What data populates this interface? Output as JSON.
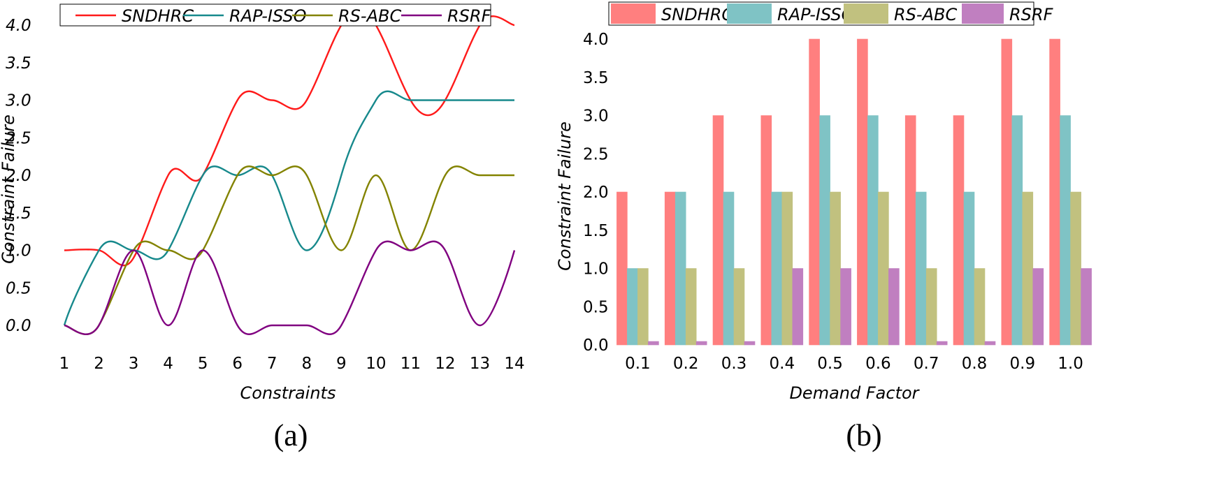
{
  "chart_data": [
    {
      "type": "line",
      "panel_label": "(a)",
      "xlabel": "Constraints",
      "ylabel": "Constraint Failure",
      "ylim": [
        0,
        4.0
      ],
      "xlim": [
        1,
        14
      ],
      "x": [
        1,
        2,
        3,
        4,
        5,
        6,
        7,
        8,
        9,
        10,
        11,
        12,
        13,
        14
      ],
      "x_tick_labels": [
        "1",
        "2",
        "3",
        "4",
        "5",
        "6",
        "7",
        "8",
        "9",
        "10",
        "11",
        "12",
        "13",
        "14"
      ],
      "y_ticks": [
        0,
        0.5,
        1,
        1.5,
        2,
        2.5,
        3,
        3.5,
        4
      ],
      "y_tick_labels": [
        "0.0",
        "0.5",
        "1.0",
        "1.5",
        "2.0",
        "2.5",
        "3.0",
        "3.5",
        "4.0"
      ],
      "legend_position": "top",
      "series": [
        {
          "name": "SNDHRC",
          "color": "#ff1a1a",
          "values": [
            1,
            1,
            0.9,
            2,
            2,
            3,
            3,
            3,
            4,
            4,
            3,
            3,
            4,
            4
          ]
        },
        {
          "name": "RAP-ISSO",
          "color": "#17898c",
          "values": [
            0,
            1,
            1,
            1,
            2,
            2,
            2,
            1,
            2,
            3,
            3,
            3,
            3,
            3
          ]
        },
        {
          "name": "RS-ABC",
          "color": "#838300",
          "values": [
            0,
            0,
            1,
            1,
            1,
            2,
            2,
            2,
            1,
            2,
            1,
            2,
            2,
            2
          ]
        },
        {
          "name": "RSRF",
          "color": "#800080",
          "values": [
            0,
            0,
            1,
            0,
            1,
            0,
            0,
            0,
            0,
            1,
            1,
            1,
            0,
            1
          ]
        }
      ]
    },
    {
      "type": "bar",
      "panel_label": "(b)",
      "xlabel": "Demand Factor",
      "ylabel": "Constraint Failure",
      "ylim": [
        0,
        4.0
      ],
      "categories": [
        "0.1",
        "0.2",
        "0.3",
        "0.4",
        "0.5",
        "0.6",
        "0.7",
        "0.8",
        "0.9",
        "1.0"
      ],
      "y_ticks": [
        0,
        0.5,
        1,
        1.5,
        2,
        2.5,
        3,
        3.5,
        4
      ],
      "y_tick_labels": [
        "0.0",
        "0.5",
        "1.0",
        "1.5",
        "2.0",
        "2.5",
        "3.0",
        "3.5",
        "4.0"
      ],
      "legend_position": "top",
      "series": [
        {
          "name": "SNDHRC",
          "color": "#ff7f7f",
          "values": [
            2,
            2,
            3,
            3,
            4,
            4,
            3,
            3,
            4,
            4
          ]
        },
        {
          "name": "RAP-ISSO",
          "color": "#7fc3c5",
          "values": [
            1,
            2,
            2,
            2,
            3,
            3,
            2,
            2,
            3,
            3
          ]
        },
        {
          "name": "RS-ABC",
          "color": "#c1c17f",
          "values": [
            1,
            1,
            1,
            2,
            2,
            2,
            1,
            1,
            2,
            2
          ]
        },
        {
          "name": "RSRF",
          "color": "#c07fc0",
          "values": [
            0,
            0,
            0,
            1,
            1,
            1,
            0,
            0,
            1,
            1
          ]
        }
      ]
    }
  ]
}
